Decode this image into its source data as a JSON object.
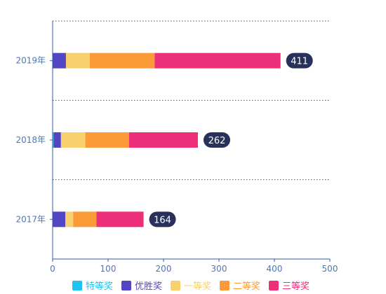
{
  "chart_data": {
    "type": "bar",
    "orientation": "horizontal",
    "stacked": true,
    "categories": [
      "2017年",
      "2018年",
      "2019年"
    ],
    "series": [
      {
        "name": "特等奖",
        "color": "#1ec3f0",
        "values": [
          0,
          2,
          0
        ]
      },
      {
        "name": "优胜奖",
        "color": "#5346c4",
        "values": [
          23,
          13,
          24
        ]
      },
      {
        "name": "一等奖",
        "color": "#f8d06e",
        "values": [
          14,
          44,
          43
        ]
      },
      {
        "name": "二等奖",
        "color": "#fb9a39",
        "values": [
          42,
          79,
          117
        ]
      },
      {
        "name": "三等奖",
        "color": "#ec2f78",
        "values": [
          85,
          124,
          227
        ]
      }
    ],
    "totals": [
      164,
      262,
      411
    ],
    "xlim": [
      0,
      500
    ],
    "xticks": [
      0,
      100,
      200,
      300,
      400,
      500
    ],
    "grid": "horizontal-dotted",
    "legend_position": "bottom",
    "total_badge_color": "#28315a",
    "axis_color": "#2b5aa8"
  }
}
